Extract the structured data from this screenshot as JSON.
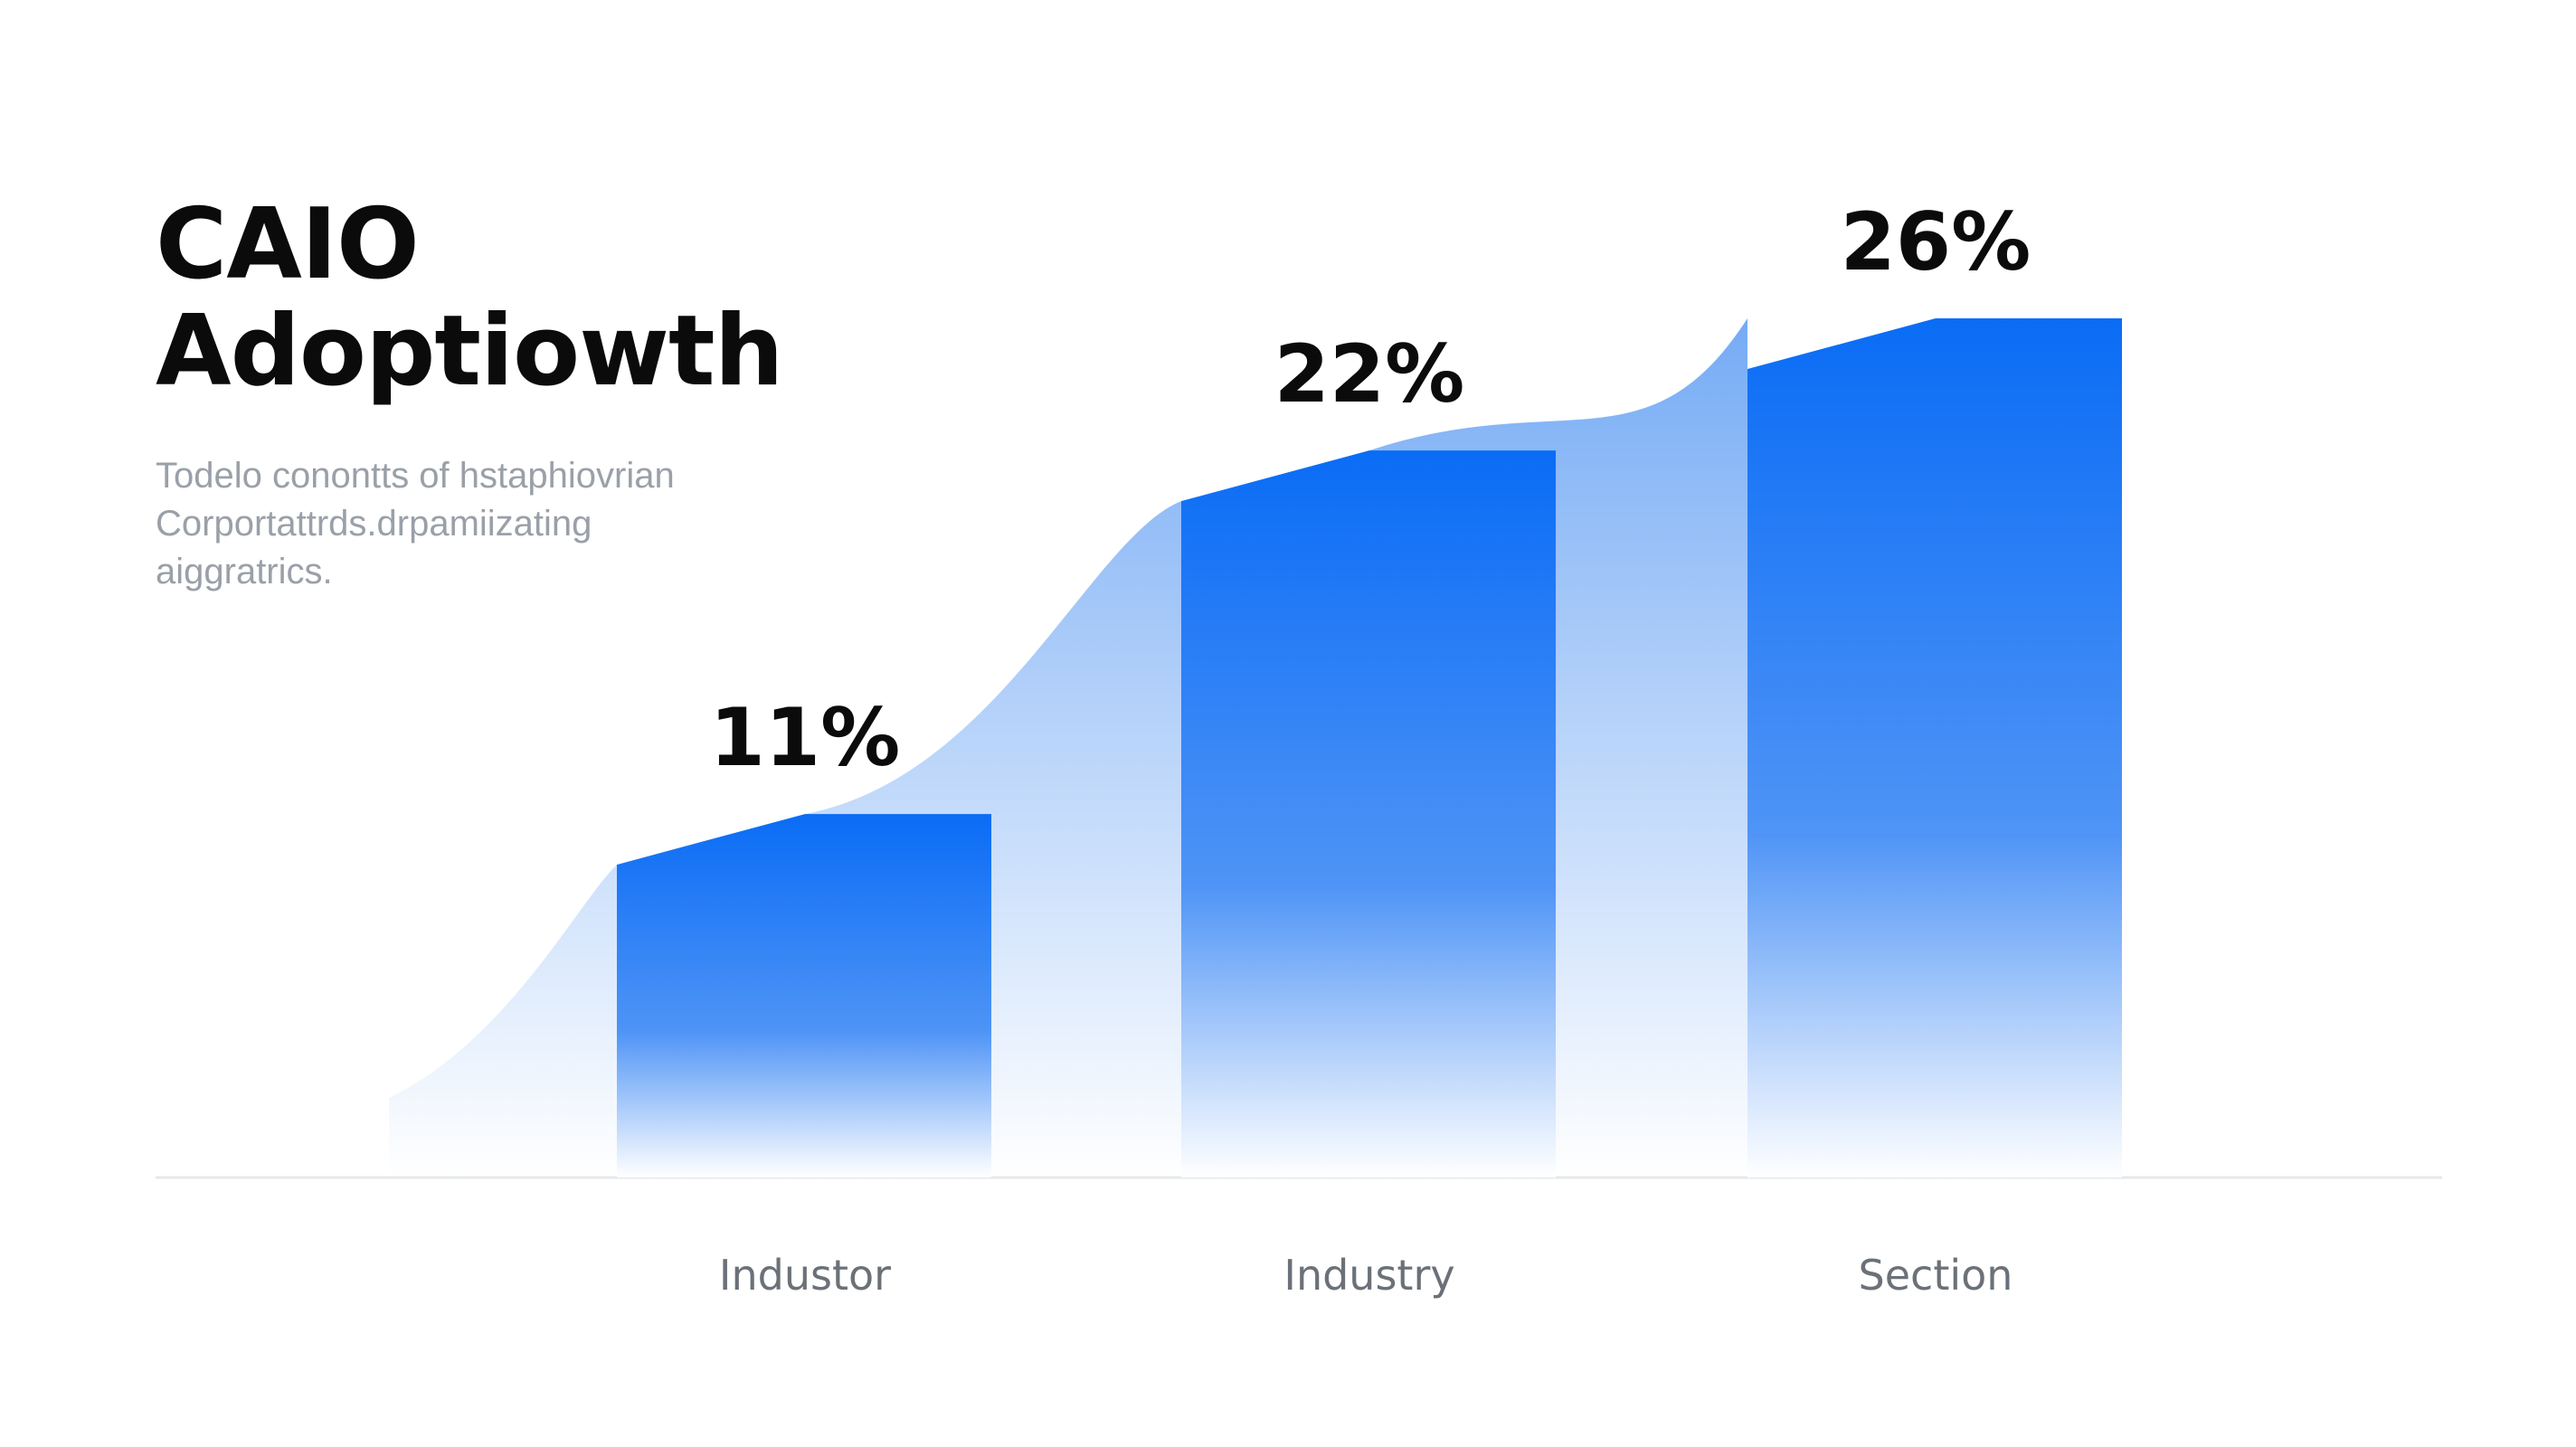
{
  "title_lines": [
    "CAIO",
    "Adoptiowth"
  ],
  "subtitle_lines": [
    "Todelo conontts of hstaphiovrian",
    "Corportattrds.drpamiizating",
    "aiggratrics."
  ],
  "colors": {
    "bar_top": "#0a6cf5",
    "bar_bottom": "#ffffff",
    "area": "#5d9cf3",
    "baseline": "#e6e8eb",
    "text": "#0b0b0b",
    "muted_text": "#9aa0a8"
  },
  "chart_data": {
    "type": "bar",
    "categories": [
      "Industor",
      "Industry",
      "Section"
    ],
    "values": [
      11,
      22,
      26
    ],
    "value_labels": [
      "11%",
      "22%",
      "26%"
    ],
    "unit": "%",
    "ylim": [
      0,
      30
    ],
    "grid": false,
    "legend": "none",
    "title": "CAIO Adoptiowth"
  }
}
